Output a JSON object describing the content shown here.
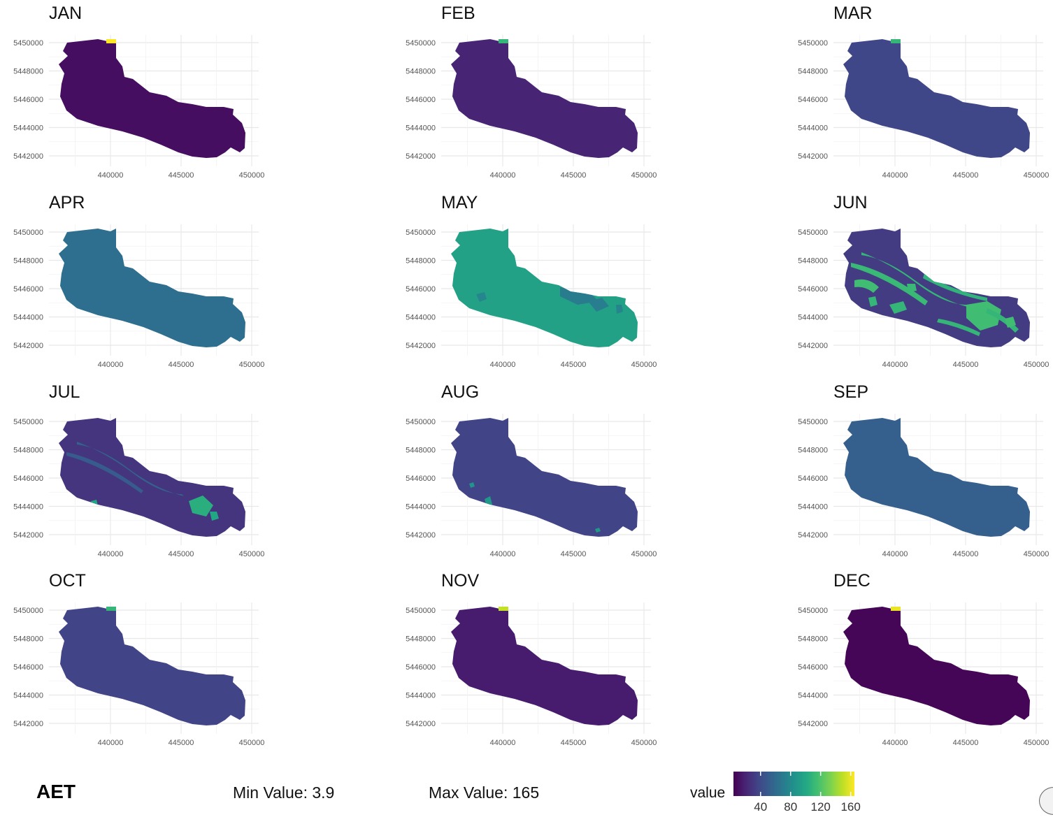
{
  "axes": {
    "y_ticks": [
      "5450000",
      "5448000",
      "5446000",
      "5444000",
      "5442000"
    ],
    "x_ticks": [
      "440000",
      "445000",
      "450000"
    ]
  },
  "panels": [
    {
      "month": "JAN",
      "mean_value": 10,
      "pattern": "uniform",
      "corner_value": 165
    },
    {
      "month": "FEB",
      "mean_value": 20,
      "pattern": "uniform",
      "corner_value": 110
    },
    {
      "month": "MAR",
      "mean_value": 38,
      "pattern": "uniform",
      "corner_value": 110
    },
    {
      "month": "APR",
      "mean_value": 62,
      "pattern": "uniform",
      "corner_value": null
    },
    {
      "month": "MAY",
      "mean_value": 96,
      "pattern": "uniform with patches",
      "corner_value": null
    },
    {
      "month": "JUN",
      "mean_value": 32,
      "pattern": "mottled",
      "corner_value": null
    },
    {
      "month": "JUL",
      "mean_value": 28,
      "pattern": "mottled",
      "corner_value": null
    },
    {
      "month": "AUG",
      "mean_value": 36,
      "pattern": "uniform with patches",
      "corner_value": null
    },
    {
      "month": "SEP",
      "mean_value": 52,
      "pattern": "uniform",
      "corner_value": null
    },
    {
      "month": "OCT",
      "mean_value": 36,
      "pattern": "uniform",
      "corner_value": 110
    },
    {
      "month": "NOV",
      "mean_value": 16,
      "pattern": "uniform",
      "corner_value": 150
    },
    {
      "month": "DEC",
      "mean_value": 6,
      "pattern": "uniform",
      "corner_value": 160
    }
  ],
  "footer": {
    "variable": "AET",
    "min_text": "Min Value: 3.9",
    "max_text": "Max Value: 165"
  },
  "legend": {
    "title": "value",
    "ticks": [
      40,
      80,
      120,
      160
    ],
    "range": [
      3.9,
      165
    ],
    "palette": "viridis"
  }
}
